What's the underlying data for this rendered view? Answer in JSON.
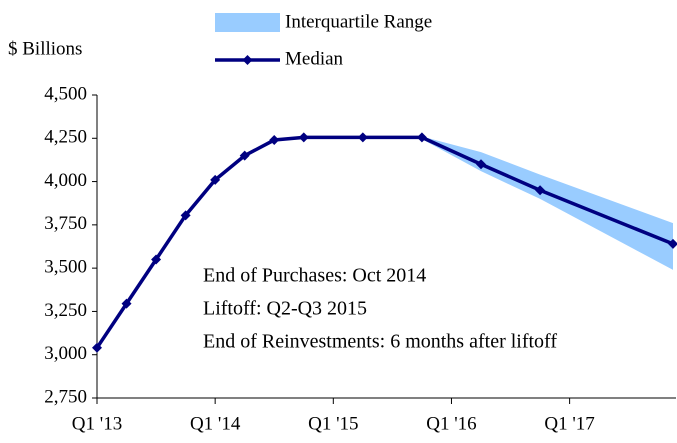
{
  "chart_data": {
    "type": "line",
    "y_axis_label": "$ Billions",
    "x": [
      0,
      1,
      2,
      3,
      4,
      5,
      6,
      7,
      9,
      11,
      13,
      15,
      19.5
    ],
    "xlim": [
      0,
      19.5
    ],
    "xticks": [
      {
        "value": 0,
        "label": "Q1 '13"
      },
      {
        "value": 4,
        "label": "Q1 '14"
      },
      {
        "value": 8,
        "label": "Q1 '15"
      },
      {
        "value": 12,
        "label": "Q1 '16"
      },
      {
        "value": 16,
        "label": "Q1 '17"
      }
    ],
    "ylim": [
      2750,
      4500
    ],
    "yticks": [
      {
        "value": 2750,
        "label": "2,750"
      },
      {
        "value": 3000,
        "label": "3,000"
      },
      {
        "value": 3250,
        "label": "3,250"
      },
      {
        "value": 3500,
        "label": "3,500"
      },
      {
        "value": 3750,
        "label": "3,750"
      },
      {
        "value": 4000,
        "label": "4,000"
      },
      {
        "value": 4250,
        "label": "4,250"
      },
      {
        "value": 4500,
        "label": "4,500"
      }
    ],
    "band": {
      "name": "Interquartile Range",
      "color": "#99ccff",
      "low": [
        3040,
        3295,
        3550,
        3805,
        4010,
        4150,
        4240,
        4255,
        4255,
        4245,
        4060,
        3900,
        3490
      ],
      "high": [
        3040,
        3295,
        3550,
        3805,
        4010,
        4150,
        4240,
        4255,
        4255,
        4260,
        4170,
        4040,
        3760
      ]
    },
    "series": [
      {
        "name": "Median",
        "color": "#000080",
        "values": [
          3040,
          3295,
          3550,
          3805,
          4010,
          4150,
          4240,
          4255,
          4255,
          4255,
          4100,
          3950,
          3640
        ]
      }
    ],
    "annotations": [
      "End of Purchases: Oct 2014",
      "Liftoff: Q2-Q3 2015",
      "End of Reinvestments: 6 months after liftoff"
    ]
  }
}
